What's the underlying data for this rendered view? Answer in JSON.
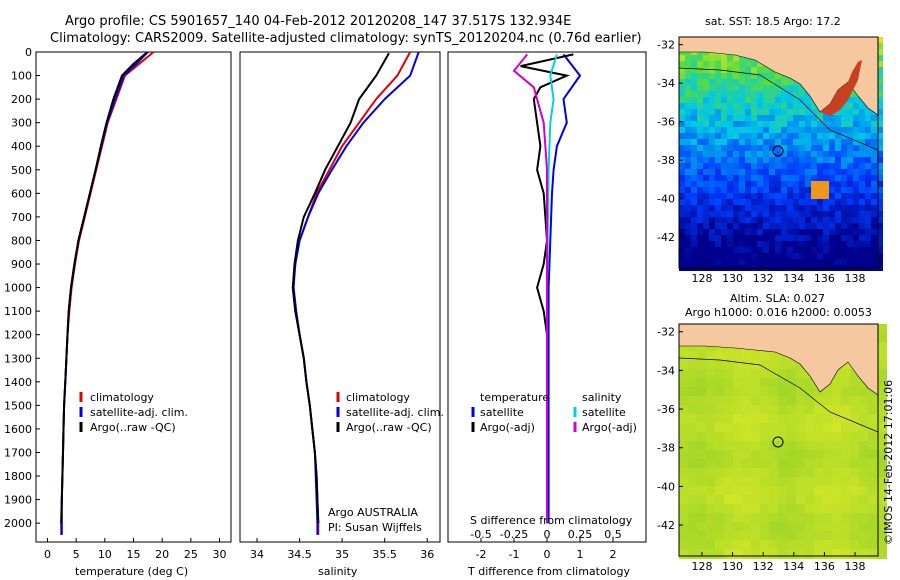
{
  "header": {
    "line1": "Argo profile: CS 5901657_140 04-Feb-2012 20120208_147 37.517S 132.934E",
    "line2": "Climatology: CARS2009. Satellite-adjusted climatology: synTS_20120204.nc (0.76d earlier)"
  },
  "colors": {
    "climatology": "#e00000",
    "satellite": "#0000e8",
    "argo": "#000000",
    "sal_satellite": "#00d0e0",
    "sal_argo": "#d000d0",
    "land": "#f5c8a0"
  },
  "panel1": {
    "xlabel": "temperature (deg C)",
    "xticks": [
      "0",
      "5",
      "10",
      "15",
      "20",
      "25",
      "30"
    ],
    "yticks": [
      "0",
      "100",
      "200",
      "300",
      "400",
      "500",
      "600",
      "700",
      "800",
      "900",
      "1000",
      "1100",
      "1200",
      "1300",
      "1400",
      "1500",
      "1600",
      "1700",
      "1800",
      "1900",
      "2000"
    ],
    "legend": [
      "climatology",
      "satellite-adj. clim.",
      "Argo(..raw -QC)"
    ]
  },
  "panel2": {
    "xlabel": "salinity",
    "xticks": [
      "34",
      "34.5",
      "35",
      "35.5",
      "36"
    ],
    "legend": [
      "climatology",
      "satellite-adj. clim.",
      "Argo(..raw -QC)"
    ],
    "note1": "Argo AUSTRALIA",
    "note2": "PI: Susan Wijffels"
  },
  "panel3": {
    "xlabel": "T difference from climatology",
    "toplabel": "S difference from climatology",
    "xticks": [
      "-2",
      "-1",
      "0",
      "1",
      "2"
    ],
    "topticks": [
      "-0.5",
      "-0.25",
      "0",
      "0.25",
      "0.5"
    ],
    "legend_t_title": "temperature",
    "legend_s_title": "salinity",
    "legend_t": [
      "satellite",
      "Argo(-adj)"
    ],
    "legend_s": [
      "satellite",
      "Argo(-adj)"
    ]
  },
  "map1": {
    "title": "sat. SST: 18.5  Argo: 17.2",
    "yticks": [
      "-32",
      "-34",
      "-36",
      "-38",
      "-40",
      "-42"
    ],
    "xticks": [
      "128",
      "130",
      "132",
      "134",
      "136",
      "138"
    ]
  },
  "map2": {
    "title1": "Altim. SLA: 0.027",
    "title2": "Argo h1000: 0.016 h2000: 0.0053",
    "yticks": [
      "-32",
      "-34",
      "-36",
      "-38",
      "-40",
      "-42"
    ],
    "xticks": [
      "128",
      "130",
      "132",
      "134",
      "136",
      "138"
    ]
  },
  "footer": "©IMOS 14-Feb-2012 17:01:06",
  "chart_data": [
    {
      "type": "line",
      "xlabel": "temperature (deg C)",
      "ylabel": "",
      "xlim": [
        -2,
        32
      ],
      "ylim": [
        2080,
        0
      ],
      "series": [
        {
          "name": "climatology",
          "points": [
            [
              18.5,
              0
            ],
            [
              16,
              50
            ],
            [
              13.5,
              100
            ],
            [
              12,
              200
            ],
            [
              10.5,
              300
            ],
            [
              9.5,
              400
            ],
            [
              8.5,
              500
            ],
            [
              7.5,
              600
            ],
            [
              6.5,
              700
            ],
            [
              5.5,
              800
            ],
            [
              4.8,
              900
            ],
            [
              4.2,
              1000
            ],
            [
              3.8,
              1100
            ],
            [
              3.5,
              1200
            ],
            [
              3.3,
              1300
            ],
            [
              3.1,
              1400
            ],
            [
              2.9,
              1500
            ],
            [
              2.8,
              1600
            ],
            [
              2.7,
              1700
            ],
            [
              2.6,
              1800
            ],
            [
              2.5,
              1900
            ],
            [
              2.4,
              2000
            ],
            [
              2.4,
              2050
            ]
          ]
        },
        {
          "name": "satellite-adj. clim.",
          "points": [
            [
              17.5,
              0
            ],
            [
              15.5,
              50
            ],
            [
              13.3,
              100
            ],
            [
              11.8,
              200
            ],
            [
              10.4,
              300
            ],
            [
              9.4,
              400
            ],
            [
              8.4,
              500
            ],
            [
              7.4,
              600
            ],
            [
              6.4,
              700
            ],
            [
              5.4,
              800
            ],
            [
              4.7,
              900
            ],
            [
              4.1,
              1000
            ],
            [
              3.7,
              1100
            ],
            [
              3.5,
              1200
            ],
            [
              3.3,
              1300
            ],
            [
              3.1,
              1400
            ],
            [
              2.9,
              1500
            ],
            [
              2.8,
              1600
            ],
            [
              2.7,
              1700
            ],
            [
              2.6,
              1800
            ],
            [
              2.5,
              1900
            ],
            [
              2.5,
              2000
            ],
            [
              2.5,
              2050
            ]
          ]
        },
        {
          "name": "Argo(..raw -QC)",
          "points": [
            [
              17.2,
              5
            ],
            [
              15,
              50
            ],
            [
              13,
              100
            ],
            [
              11.5,
              200
            ],
            [
              10.3,
              300
            ],
            [
              9.3,
              400
            ],
            [
              8.4,
              500
            ],
            [
              7.4,
              600
            ],
            [
              6.4,
              700
            ],
            [
              5.4,
              800
            ],
            [
              4.7,
              900
            ],
            [
              4.1,
              1000
            ],
            [
              3.7,
              1100
            ],
            [
              3.5,
              1200
            ],
            [
              3.3,
              1300
            ],
            [
              3.1,
              1400
            ],
            [
              2.9,
              1500
            ],
            [
              2.8,
              1600
            ],
            [
              2.7,
              1700
            ],
            [
              2.6,
              1800
            ],
            [
              2.5,
              1900
            ],
            [
              2.4,
              2000
            ]
          ]
        }
      ]
    },
    {
      "type": "line",
      "xlabel": "salinity",
      "xlim": [
        33.8,
        36.15
      ],
      "ylim": [
        2080,
        0
      ],
      "series": [
        {
          "name": "climatology",
          "points": [
            [
              35.8,
              0
            ],
            [
              35.65,
              100
            ],
            [
              35.4,
              200
            ],
            [
              35.2,
              300
            ],
            [
              35.0,
              400
            ],
            [
              34.85,
              500
            ],
            [
              34.7,
              600
            ],
            [
              34.6,
              700
            ],
            [
              34.5,
              800
            ],
            [
              34.45,
              900
            ],
            [
              34.42,
              1000
            ],
            [
              34.45,
              1100
            ],
            [
              34.5,
              1200
            ],
            [
              34.55,
              1300
            ],
            [
              34.58,
              1400
            ],
            [
              34.62,
              1500
            ],
            [
              34.65,
              1600
            ],
            [
              34.68,
              1700
            ],
            [
              34.7,
              1800
            ],
            [
              34.71,
              1900
            ],
            [
              34.72,
              2000
            ],
            [
              34.72,
              2050
            ]
          ]
        },
        {
          "name": "satellite-adj. clim.",
          "points": [
            [
              35.9,
              0
            ],
            [
              35.8,
              100
            ],
            [
              35.5,
              200
            ],
            [
              35.25,
              300
            ],
            [
              35.05,
              400
            ],
            [
              34.88,
              500
            ],
            [
              34.72,
              600
            ],
            [
              34.6,
              700
            ],
            [
              34.5,
              800
            ],
            [
              34.45,
              900
            ],
            [
              34.43,
              1000
            ],
            [
              34.46,
              1100
            ],
            [
              34.5,
              1200
            ],
            [
              34.55,
              1300
            ],
            [
              34.58,
              1400
            ],
            [
              34.62,
              1500
            ],
            [
              34.65,
              1600
            ],
            [
              34.68,
              1700
            ],
            [
              34.69,
              1800
            ],
            [
              34.7,
              1900
            ],
            [
              34.71,
              2000
            ],
            [
              34.71,
              2050
            ]
          ]
        },
        {
          "name": "Argo(..raw -QC)",
          "points": [
            [
              35.55,
              5
            ],
            [
              35.4,
              100
            ],
            [
              35.2,
              200
            ],
            [
              35.1,
              300
            ],
            [
              34.95,
              400
            ],
            [
              34.8,
              500
            ],
            [
              34.68,
              600
            ],
            [
              34.55,
              700
            ],
            [
              34.48,
              800
            ],
            [
              34.44,
              900
            ],
            [
              34.42,
              1000
            ],
            [
              34.45,
              1100
            ],
            [
              34.5,
              1200
            ],
            [
              34.55,
              1300
            ],
            [
              34.58,
              1400
            ],
            [
              34.62,
              1500
            ],
            [
              34.65,
              1600
            ],
            [
              34.68,
              1700
            ],
            [
              34.7,
              1800
            ],
            [
              34.71,
              1900
            ],
            [
              34.72,
              2000
            ]
          ]
        }
      ]
    },
    {
      "type": "line",
      "xlabel": "T difference from climatology",
      "top_xlabel": "S difference from climatology",
      "xlim": [
        -3,
        3
      ],
      "ylim": [
        2080,
        0
      ],
      "series": [
        {
          "name": "temperature satellite",
          "points": [
            [
              0.5,
              10
            ],
            [
              1.0,
              100
            ],
            [
              0.5,
              200
            ],
            [
              0.6,
              300
            ],
            [
              0.3,
              400
            ],
            [
              0.2,
              500
            ],
            [
              0.15,
              600
            ],
            [
              0.1,
              800
            ],
            [
              0.05,
              1000
            ],
            [
              0.05,
              1500
            ],
            [
              0.05,
              2000
            ]
          ]
        },
        {
          "name": "temperature Argo(-adj)",
          "points": [
            [
              0.8,
              10
            ],
            [
              -0.8,
              60
            ],
            [
              0.6,
              100
            ],
            [
              -0.2,
              150
            ],
            [
              -0.4,
              200
            ],
            [
              -0.3,
              300
            ],
            [
              -0.2,
              400
            ],
            [
              -0.3,
              500
            ],
            [
              -0.1,
              600
            ],
            [
              0.0,
              800
            ],
            [
              -0.1,
              900
            ],
            [
              -0.3,
              1000
            ],
            [
              -0.1,
              1100
            ],
            [
              0.0,
              1200
            ],
            [
              0.0,
              1500
            ],
            [
              0.0,
              2000
            ]
          ]
        },
        {
          "name": "salinity satellite",
          "points": [
            [
              0.3,
              10
            ],
            [
              0.1,
              100
            ],
            [
              0.2,
              200
            ],
            [
              0.1,
              300
            ],
            [
              0.05,
              500
            ],
            [
              0.0,
              1000
            ],
            [
              0.0,
              2000
            ]
          ]
        },
        {
          "name": "salinity Argo(-adj)",
          "points": [
            [
              -0.6,
              10
            ],
            [
              -1.0,
              80
            ],
            [
              -0.4,
              150
            ],
            [
              -0.1,
              300
            ],
            [
              0.0,
              500
            ],
            [
              0.0,
              1000
            ],
            [
              0.0,
              2000
            ]
          ]
        }
      ]
    }
  ]
}
